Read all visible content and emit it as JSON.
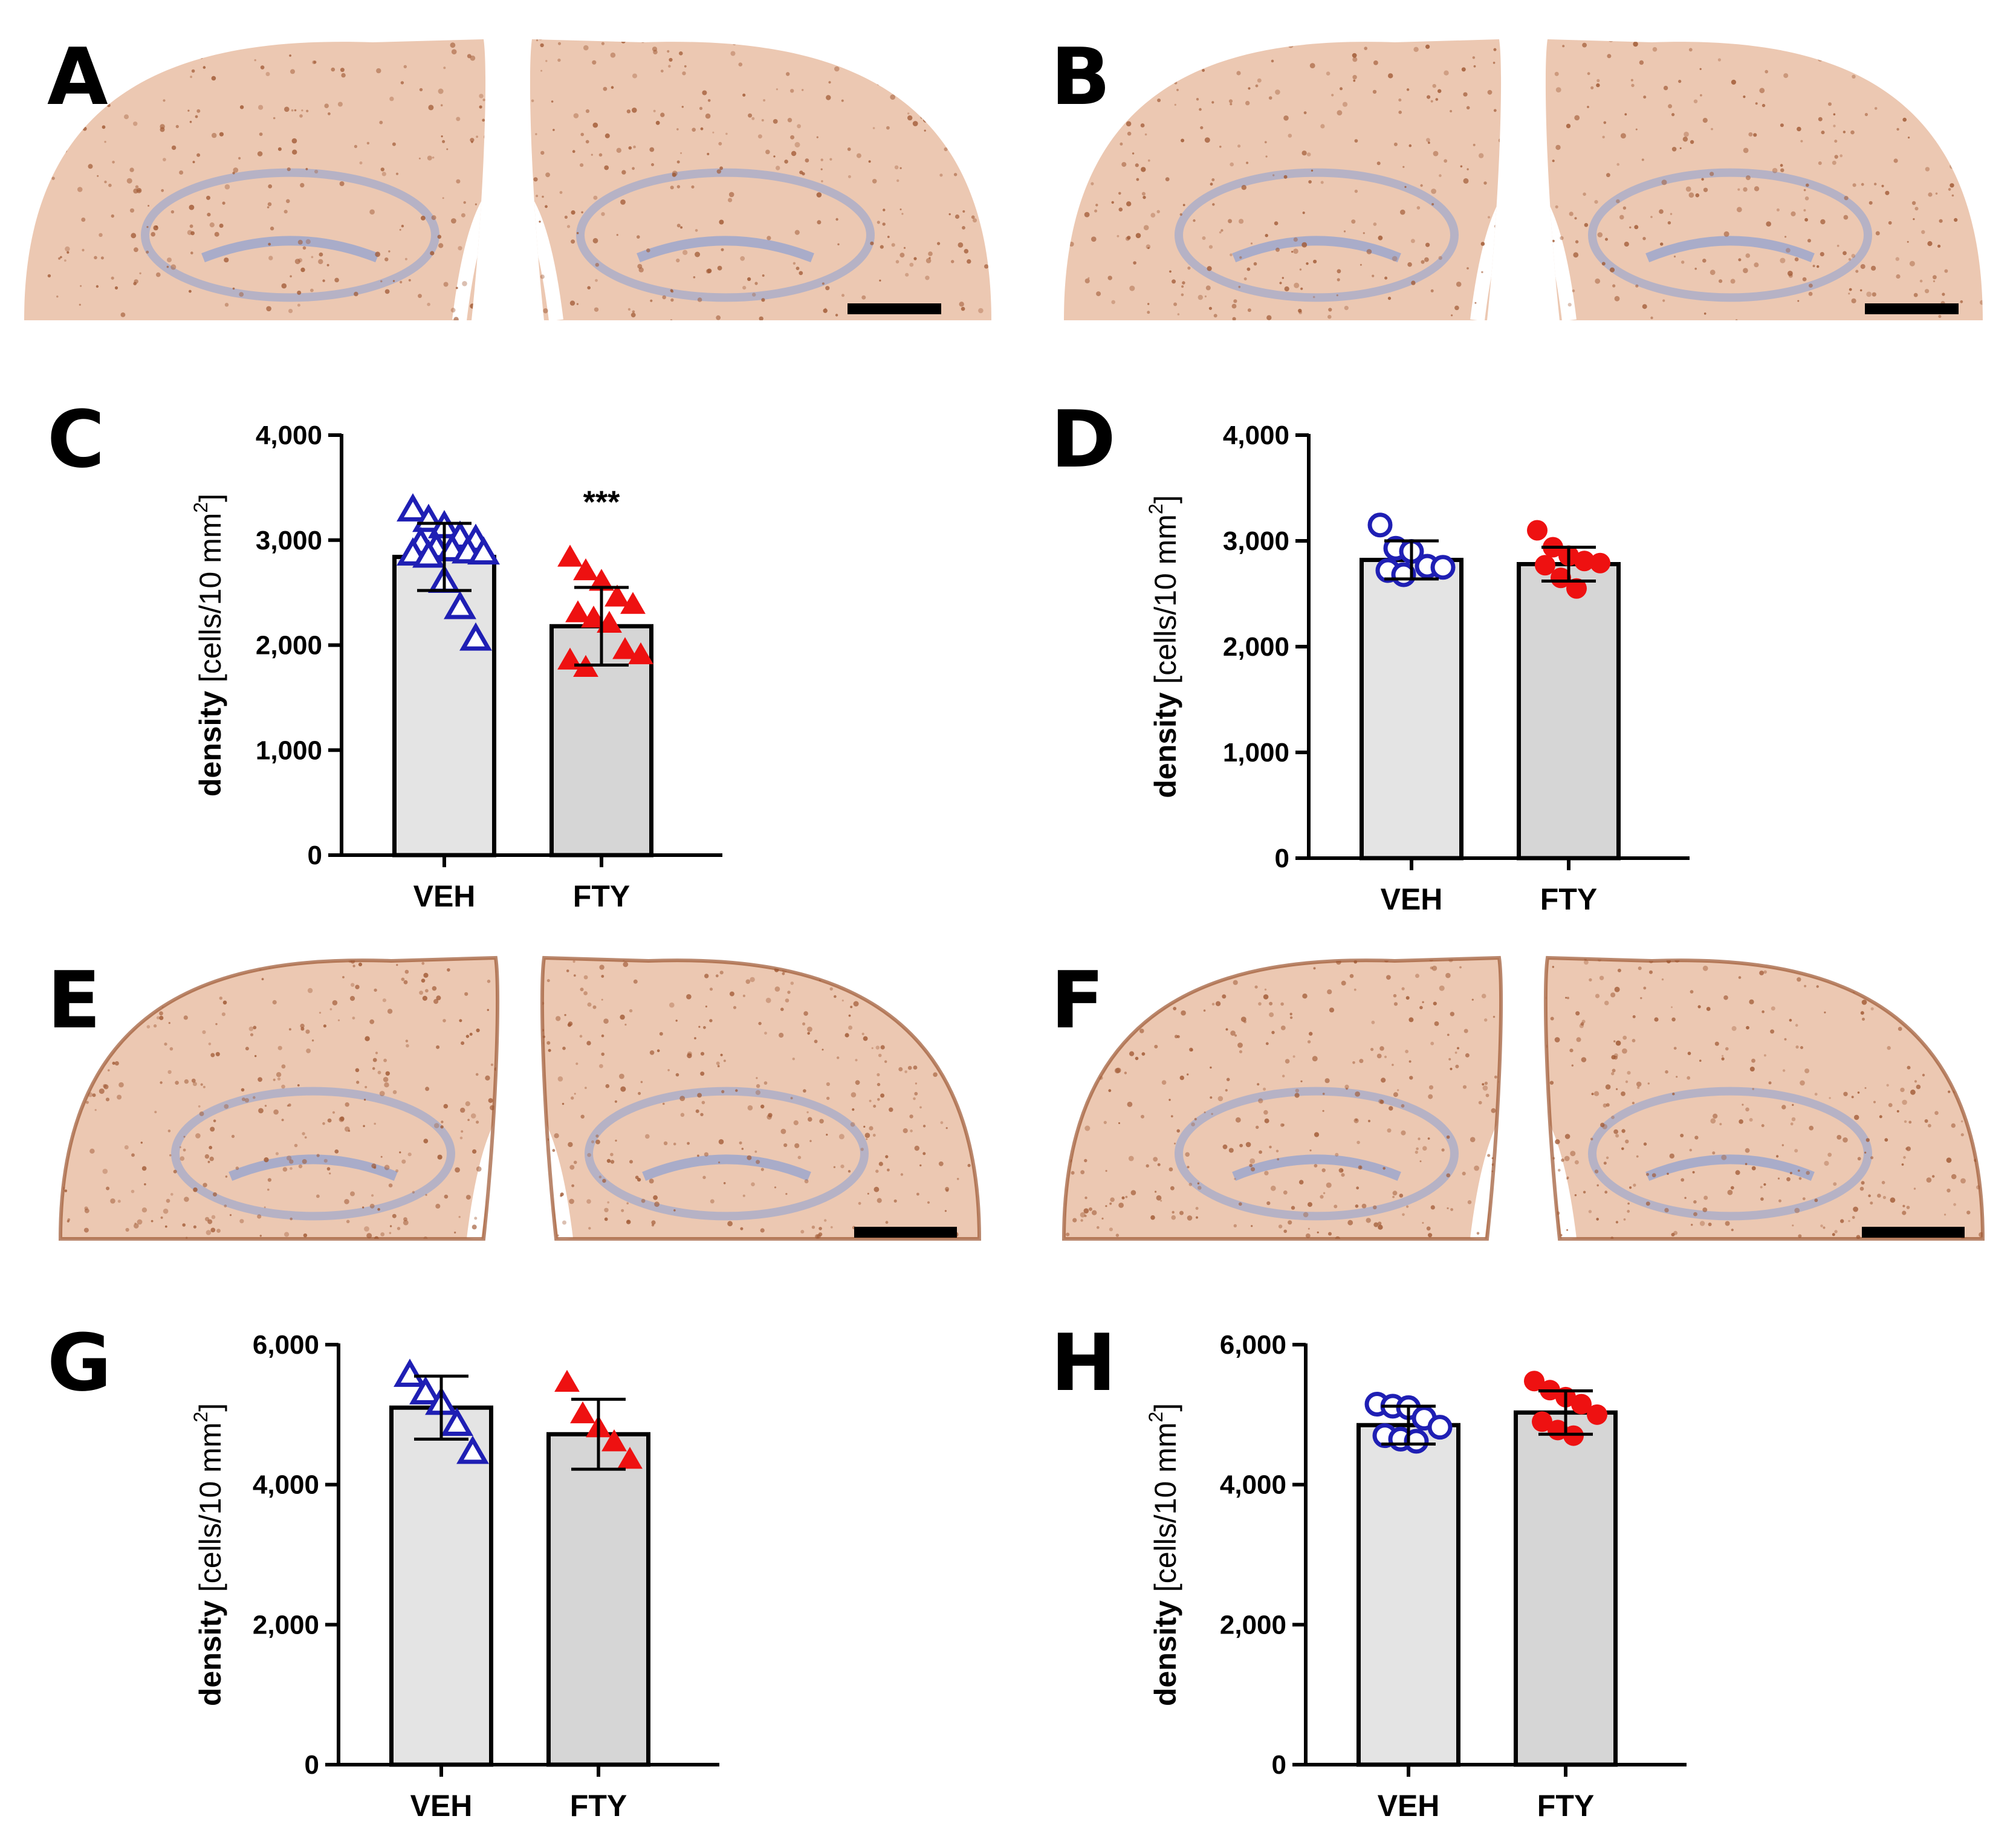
{
  "panels": {
    "A": "A",
    "B": "B",
    "C": "C",
    "D": "D",
    "E": "E",
    "F": "F",
    "G": "G",
    "H": "H"
  },
  "colors": {
    "veh_marker": "#1f1fb4",
    "fty_marker": "#ee1111",
    "veh_bar": "#e4e4e4",
    "fty_bar": "#d6d6d6",
    "tissue_light": "#ecc8b2",
    "tissue_stain": "#a15a35",
    "hippocampus_blue": "#a9acc9"
  },
  "micrographs": [
    {
      "panel": "A",
      "scale_bar": "scale-bar"
    },
    {
      "panel": "B",
      "scale_bar": "scale-bar"
    },
    {
      "panel": "E",
      "scale_bar": "scale-bar"
    },
    {
      "panel": "F",
      "scale_bar": "scale-bar"
    }
  ],
  "chart_data": [
    {
      "panel": "C",
      "type": "bar",
      "categories": [
        "VEH",
        "FTY"
      ],
      "ylabel_bold": "density",
      "ylabel_unit": "[cells/10 mm",
      "ylabel_sup": "2",
      "ylabel_close": "]",
      "ylim": [
        0,
        4000
      ],
      "yticks": [
        0,
        1000,
        2000,
        3000,
        4000
      ],
      "ytick_labels": [
        "0",
        "1,000",
        "2,000",
        "3,000",
        "4,000"
      ],
      "grid": false,
      "significance": [
        "",
        "***"
      ],
      "series": [
        {
          "values": [
            2840,
            2180
          ],
          "error": [
            320,
            370
          ],
          "points": [
            [
              3280,
              3180,
              3120,
              3020,
              2990,
              2960,
              2920,
              2900,
              2880,
              2870,
              2860,
              2840,
              2600,
              2350,
              2050
            ],
            [
              2830,
              2700,
              2600,
              2450,
              2380,
              2300,
              2250,
              2200,
              1950,
              1900,
              1850,
              1780
            ]
          ],
          "markers": [
            "triangle-open",
            "triangle-filled"
          ]
        }
      ]
    },
    {
      "panel": "D",
      "type": "bar",
      "categories": [
        "VEH",
        "FTY"
      ],
      "ylabel_bold": "density",
      "ylabel_unit": "[cells/10 mm",
      "ylabel_sup": "2",
      "ylabel_close": "]",
      "ylim": [
        0,
        4000
      ],
      "yticks": [
        0,
        1000,
        2000,
        3000,
        4000
      ],
      "ytick_labels": [
        "0",
        "1,000",
        "2,000",
        "3,000",
        "4,000"
      ],
      "grid": false,
      "significance": [
        "",
        ""
      ],
      "series": [
        {
          "values": [
            2820,
            2780
          ],
          "error": [
            180,
            160
          ],
          "points": [
            [
              3150,
              2930,
              2900,
              2760,
              2750,
              2720,
              2680
            ],
            [
              3100,
              2940,
              2860,
              2810,
              2790,
              2770,
              2650,
              2550
            ]
          ],
          "markers": [
            "circle-open",
            "circle-filled"
          ]
        }
      ]
    },
    {
      "panel": "G",
      "type": "bar",
      "categories": [
        "VEH",
        "FTY"
      ],
      "ylabel_bold": "density",
      "ylabel_unit": "[cells/10 mm",
      "ylabel_sup": "2",
      "ylabel_close": "]",
      "ylim": [
        0,
        6000
      ],
      "yticks": [
        0,
        2000,
        4000,
        6000
      ],
      "ytick_labels": [
        "0",
        "2,000",
        "4,000",
        "6,000"
      ],
      "grid": false,
      "significance": [
        "",
        ""
      ],
      "series": [
        {
          "values": [
            5100,
            4720
          ],
          "error": [
            450,
            500
          ],
          "points": [
            [
              5550,
              5300,
              5150,
              4850,
              4450
            ],
            [
              5450,
              5000,
              4800,
              4600,
              4350
            ]
          ],
          "markers": [
            "triangle-open",
            "triangle-filled"
          ]
        }
      ]
    },
    {
      "panel": "H",
      "type": "bar",
      "categories": [
        "VEH",
        "FTY"
      ],
      "ylabel_bold": "density",
      "ylabel_unit": "[cells/10 mm",
      "ylabel_sup": "2",
      "ylabel_close": "]",
      "ylim": [
        0,
        6000
      ],
      "yticks": [
        0,
        2000,
        4000,
        6000
      ],
      "ytick_labels": [
        "0",
        "2,000",
        "4,000",
        "6,000"
      ],
      "grid": false,
      "significance": [
        "",
        ""
      ],
      "series": [
        {
          "values": [
            4850,
            5030
          ],
          "error": [
            270,
            310
          ],
          "points": [
            [
              5150,
              5120,
              5100,
              4950,
              4820,
              4700,
              4650,
              4620
            ],
            [
              5480,
              5350,
              5250,
              5150,
              5000,
              4900,
              4780,
              4700
            ]
          ],
          "markers": [
            "circle-open",
            "circle-filled"
          ]
        }
      ]
    }
  ]
}
